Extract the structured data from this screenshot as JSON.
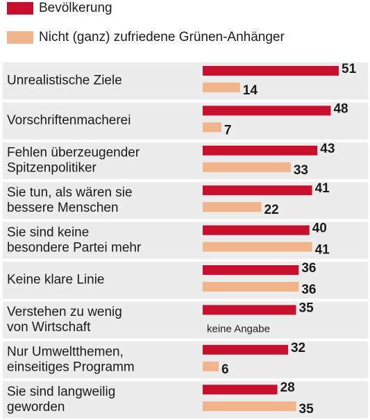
{
  "chart_data": {
    "type": "bar",
    "orientation": "horizontal",
    "categories": [
      "Unrealistische Ziele",
      "Vorschriftenmacherei",
      "Fehlen überzeugender\nSpitzenpolitiker",
      "Sie tun, als wären sie\nbessere Menschen",
      "Sie sind keine\nbesondere Partei mehr",
      "Keine klare Linie",
      "Verstehen zu wenig\nvon Wirtschaft",
      "Nur Umweltthemen,\neinseitiges Programm",
      "Sie sind langweilig\ngeworden"
    ],
    "series": [
      {
        "name": "Bevölkerung",
        "color": "#c8102e",
        "values": [
          51,
          48,
          43,
          41,
          40,
          36,
          35,
          32,
          28
        ]
      },
      {
        "name": "Nicht (ganz) zufriedene Grünen-Anhänger",
        "color": "#f2b48a",
        "values": [
          14,
          7,
          33,
          22,
          41,
          36,
          null,
          6,
          35
        ],
        "value_labels": [
          null,
          null,
          null,
          null,
          null,
          null,
          "keine Angabe",
          null,
          null
        ]
      }
    ]
  }
}
